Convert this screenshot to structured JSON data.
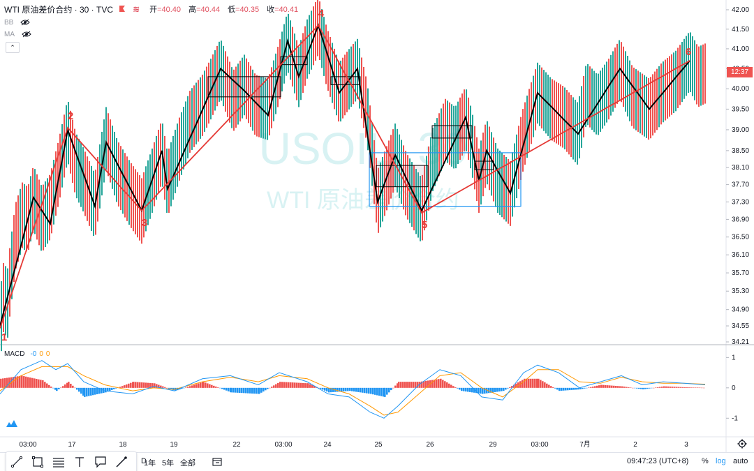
{
  "header": {
    "symbol": "WTI 原油差价合约 · 30 · TVC",
    "ohlc": [
      {
        "label": "开",
        "value": "=40.40"
      },
      {
        "label": "高",
        "value": "=40.44"
      },
      {
        "label": "低",
        "value": "=40.35"
      },
      {
        "label": "收",
        "value": "=40.41"
      }
    ]
  },
  "indicators": [
    {
      "label": "BB"
    },
    {
      "label": "MA"
    }
  ],
  "macd": {
    "label": "MACD",
    "value_a": "-0",
    "value_b": "0",
    "value_c": "0"
  },
  "watermark": {
    "line1": "USOIL, 30",
    "line2": "WTI 原油差价合约"
  },
  "price_tag": "12:37",
  "toolbar": {
    "range_buttons": [
      "D",
      "1年",
      "5年",
      "全部"
    ],
    "time": "09:47:23 (UTC+8)",
    "percent": "%",
    "log": "log",
    "auto": "auto"
  },
  "colors": {
    "up": "#26a69a",
    "down": "#ef5350",
    "wave": "#e53935",
    "zigzag": "#000000",
    "macd_line": "#2196f3",
    "signal_line": "#ff9800",
    "box_blue": "#2196f3"
  },
  "chart_data": [
    {
      "type": "line",
      "title": "WTI 原油差价合约 · 30 · TVC",
      "y_ticks": [
        "42.00",
        "41.50",
        "41.00",
        "40.50",
        "40.00",
        "39.50",
        "39.00",
        "38.50",
        "38.10",
        "37.70",
        "37.30",
        "36.90",
        "36.50",
        "36.10",
        "35.70",
        "35.30",
        "34.90",
        "34.55",
        "34.21"
      ],
      "y_scale": "log",
      "ylim": [
        34.21,
        42.0
      ],
      "x_ticks": [
        "03:00",
        "17",
        "18",
        "19",
        "22",
        "03:00",
        "24",
        "25",
        "26",
        "29",
        "03:00",
        "7月",
        "2",
        "3"
      ],
      "price_path": [
        {
          "x": 0,
          "y": 34.5
        },
        {
          "x": 6,
          "y": 35.3
        },
        {
          "x": 10,
          "y": 34.9
        },
        {
          "x": 14,
          "y": 35.5
        },
        {
          "x": 22,
          "y": 36.5
        },
        {
          "x": 32,
          "y": 37.0
        },
        {
          "x": 40,
          "y": 36.9
        },
        {
          "x": 48,
          "y": 37.4
        },
        {
          "x": 60,
          "y": 36.9
        },
        {
          "x": 72,
          "y": 37.2
        },
        {
          "x": 84,
          "y": 38.0
        },
        {
          "x": 97,
          "y": 39.0
        },
        {
          "x": 108,
          "y": 38.2
        },
        {
          "x": 120,
          "y": 37.8
        },
        {
          "x": 136,
          "y": 37.2
        },
        {
          "x": 152,
          "y": 38.8
        },
        {
          "x": 168,
          "y": 38.0
        },
        {
          "x": 186,
          "y": 37.5
        },
        {
          "x": 203,
          "y": 37.1
        },
        {
          "x": 218,
          "y": 37.8
        },
        {
          "x": 232,
          "y": 38.5
        },
        {
          "x": 240,
          "y": 37.7
        },
        {
          "x": 256,
          "y": 38.5
        },
        {
          "x": 272,
          "y": 39.2
        },
        {
          "x": 290,
          "y": 39.6
        },
        {
          "x": 302,
          "y": 40.0
        },
        {
          "x": 316,
          "y": 40.5
        },
        {
          "x": 334,
          "y": 39.7
        },
        {
          "x": 350,
          "y": 40.1
        },
        {
          "x": 366,
          "y": 39.6
        },
        {
          "x": 384,
          "y": 39.5
        },
        {
          "x": 398,
          "y": 40.3
        },
        {
          "x": 412,
          "y": 41.2
        },
        {
          "x": 428,
          "y": 40.3
        },
        {
          "x": 440,
          "y": 41.0
        },
        {
          "x": 456,
          "y": 41.6
        },
        {
          "x": 468,
          "y": 40.8
        },
        {
          "x": 486,
          "y": 39.9
        },
        {
          "x": 498,
          "y": 40.2
        },
        {
          "x": 512,
          "y": 40.5
        },
        {
          "x": 526,
          "y": 39.4
        },
        {
          "x": 541,
          "y": 37.3
        },
        {
          "x": 555,
          "y": 37.9
        },
        {
          "x": 566,
          "y": 38.4
        },
        {
          "x": 582,
          "y": 37.7
        },
        {
          "x": 604,
          "y": 37.1
        },
        {
          "x": 620,
          "y": 38.3
        },
        {
          "x": 638,
          "y": 39.0
        },
        {
          "x": 652,
          "y": 38.8
        },
        {
          "x": 667,
          "y": 39.3
        },
        {
          "x": 676,
          "y": 38.7
        },
        {
          "x": 686,
          "y": 37.8
        },
        {
          "x": 697,
          "y": 38.5
        },
        {
          "x": 713,
          "y": 37.8
        },
        {
          "x": 731,
          "y": 37.5
        },
        {
          "x": 748,
          "y": 38.7
        },
        {
          "x": 770,
          "y": 39.9
        },
        {
          "x": 790,
          "y": 39.5
        },
        {
          "x": 808,
          "y": 39.3
        },
        {
          "x": 828,
          "y": 38.9
        },
        {
          "x": 840,
          "y": 39.9
        },
        {
          "x": 856,
          "y": 39.6
        },
        {
          "x": 872,
          "y": 40.0
        },
        {
          "x": 888,
          "y": 40.5
        },
        {
          "x": 906,
          "y": 39.8
        },
        {
          "x": 930,
          "y": 39.5
        },
        {
          "x": 948,
          "y": 39.9
        },
        {
          "x": 968,
          "y": 40.2
        },
        {
          "x": 988,
          "y": 40.7
        },
        {
          "x": 1000,
          "y": 40.3
        },
        {
          "x": 1012,
          "y": 40.4
        }
      ],
      "wave_labels": [
        {
          "label": "1",
          "x": 0,
          "y": 34.5
        },
        {
          "label": "2",
          "x": 97,
          "y": 39.05
        },
        {
          "label": "3",
          "x": 203,
          "y": 37.1
        },
        {
          "label": "4",
          "x": 456,
          "y": 41.6
        },
        {
          "label": "5",
          "x": 604,
          "y": 37.05
        },
        {
          "label": "6",
          "x": 988,
          "y": 40.7
        }
      ],
      "zigzag": [
        {
          "x": 0,
          "y": 34.55
        },
        {
          "x": 48,
          "y": 37.4
        },
        {
          "x": 72,
          "y": 36.8
        },
        {
          "x": 97,
          "y": 39.0
        },
        {
          "x": 136,
          "y": 37.2
        },
        {
          "x": 152,
          "y": 38.7
        },
        {
          "x": 203,
          "y": 37.1
        },
        {
          "x": 232,
          "y": 38.5
        },
        {
          "x": 240,
          "y": 37.6
        },
        {
          "x": 316,
          "y": 40.5
        },
        {
          "x": 350,
          "y": 39.95
        },
        {
          "x": 384,
          "y": 39.35
        },
        {
          "x": 412,
          "y": 41.2
        },
        {
          "x": 428,
          "y": 40.3
        },
        {
          "x": 456,
          "y": 41.6
        },
        {
          "x": 486,
          "y": 39.9
        },
        {
          "x": 512,
          "y": 40.5
        },
        {
          "x": 541,
          "y": 37.3
        },
        {
          "x": 566,
          "y": 38.4
        },
        {
          "x": 604,
          "y": 37.1
        },
        {
          "x": 667,
          "y": 39.3
        },
        {
          "x": 686,
          "y": 37.8
        },
        {
          "x": 697,
          "y": 38.5
        },
        {
          "x": 731,
          "y": 37.5
        },
        {
          "x": 770,
          "y": 39.9
        },
        {
          "x": 828,
          "y": 38.9
        },
        {
          "x": 888,
          "y": 40.5
        },
        {
          "x": 930,
          "y": 39.5
        },
        {
          "x": 988,
          "y": 40.7
        }
      ],
      "boxes": [
        {
          "x1": 298,
          "x2": 402,
          "y1": 40.3,
          "y2": 39.8,
          "style": "black"
        },
        {
          "x1": 402,
          "x2": 440,
          "y1": 40.8,
          "y2": 40.6,
          "style": "black"
        },
        {
          "x1": 474,
          "x2": 516,
          "y1": 40.3,
          "y2": 40.1,
          "style": "black"
        },
        {
          "x1": 539,
          "x2": 613,
          "y1": 38.15,
          "y2": 37.65,
          "style": "black"
        },
        {
          "x1": 619,
          "x2": 676,
          "y1": 39.1,
          "y2": 38.8,
          "style": "black"
        },
        {
          "x1": 680,
          "x2": 707,
          "y1": 38.25,
          "y2": 38.05,
          "style": "black"
        },
        {
          "x1": 529,
          "x2": 746,
          "y1": 38.45,
          "y2": 37.2,
          "style": "blue"
        }
      ]
    },
    {
      "type": "line",
      "title": "MACD",
      "y_ticks": [
        "1",
        "0",
        "-1"
      ],
      "ylim": [
        -1.2,
        1.1
      ],
      "series": [
        {
          "x": [
            0,
            30,
            60,
            80,
            97,
            120,
            150,
            190,
            220,
            250,
            290,
            330,
            370,
            400,
            440,
            470,
            500,
            530,
            550,
            570,
            600,
            630,
            660,
            690,
            720,
            750,
            770,
            800,
            830,
            860,
            890,
            920,
            950,
            980,
            1010
          ],
          "macd": [
            -0.2,
            0.6,
            0.9,
            0.6,
            0.8,
            0.2,
            -0.1,
            -0.2,
            0.05,
            -0.1,
            0.3,
            0.4,
            0.1,
            0.5,
            0.2,
            -0.2,
            -0.3,
            -0.8,
            -1.0,
            -0.6,
            0.1,
            0.6,
            0.4,
            -0.3,
            -0.4,
            0.5,
            0.75,
            0.5,
            0.0,
            0.2,
            0.4,
            0.1,
            0.2,
            0.15,
            0.1
          ],
          "signal": [
            -0.1,
            0.4,
            0.7,
            0.7,
            0.7,
            0.4,
            0.1,
            -0.1,
            0.0,
            -0.05,
            0.2,
            0.35,
            0.2,
            0.4,
            0.3,
            0.0,
            -0.2,
            -0.6,
            -0.9,
            -0.8,
            -0.2,
            0.4,
            0.5,
            0.0,
            -0.3,
            0.2,
            0.6,
            0.6,
            0.2,
            0.15,
            0.35,
            0.2,
            0.15,
            0.15,
            0.12
          ],
          "hist": [
            0.3,
            0.4,
            0.25,
            -0.1,
            0.2,
            -0.3,
            -0.15,
            0.2,
            0.15,
            -0.1,
            0.2,
            -0.15,
            -0.2,
            0.2,
            0.15,
            -0.15,
            -0.1,
            -0.2,
            -0.3,
            0.2,
            0.2,
            0.3,
            -0.1,
            -0.2,
            -0.1,
            0.3,
            0.3,
            -0.1,
            -0.05,
            0.1,
            0.05,
            -0.05,
            0.05,
            0.02,
            0.0
          ]
        }
      ]
    }
  ]
}
